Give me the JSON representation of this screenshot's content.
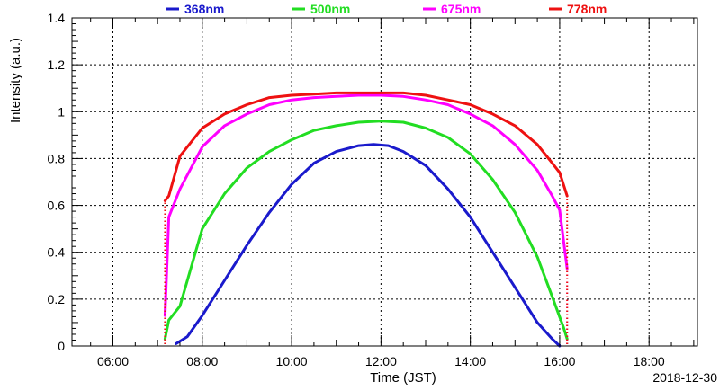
{
  "chart_data": {
    "type": "scatter",
    "xlabel": "Time (JST)",
    "ylabel": "Intensity (a.u.)",
    "date_label": "2018-12-30",
    "xlim": [
      "05:05",
      "19:05"
    ],
    "ylim": [
      0,
      1.4
    ],
    "x_ticks": [
      "06:00",
      "08:00",
      "10:00",
      "12:00",
      "14:00",
      "16:00",
      "18:00"
    ],
    "y_ticks": [
      "0",
      "0.2",
      "0.4",
      "0.6",
      "0.8",
      "1",
      "1.2",
      "1.4"
    ],
    "grid": true,
    "legend_position": "top",
    "series": [
      {
        "name": "368nm",
        "color": "#1a1acc",
        "points": [
          [
            "07:25",
            0.01
          ],
          [
            "07:40",
            0.04
          ],
          [
            "08:00",
            0.13
          ],
          [
            "08:30",
            0.28
          ],
          [
            "09:00",
            0.43
          ],
          [
            "09:30",
            0.57
          ],
          [
            "10:00",
            0.69
          ],
          [
            "10:30",
            0.78
          ],
          [
            "11:00",
            0.83
          ],
          [
            "11:30",
            0.855
          ],
          [
            "11:50",
            0.86
          ],
          [
            "12:10",
            0.855
          ],
          [
            "12:30",
            0.83
          ],
          [
            "13:00",
            0.77
          ],
          [
            "13:30",
            0.67
          ],
          [
            "14:00",
            0.55
          ],
          [
            "14:30",
            0.4
          ],
          [
            "15:00",
            0.25
          ],
          [
            "15:30",
            0.1
          ],
          [
            "15:50",
            0.03
          ],
          [
            "16:00",
            0.0
          ]
        ]
      },
      {
        "name": "500nm",
        "color": "#22dd22",
        "points": [
          [
            "07:10",
            0.03
          ],
          [
            "07:15",
            0.11
          ],
          [
            "07:30",
            0.17
          ],
          [
            "08:00",
            0.5
          ],
          [
            "08:30",
            0.65
          ],
          [
            "09:00",
            0.76
          ],
          [
            "09:30",
            0.83
          ],
          [
            "10:00",
            0.88
          ],
          [
            "10:30",
            0.92
          ],
          [
            "11:00",
            0.94
          ],
          [
            "11:30",
            0.955
          ],
          [
            "12:00",
            0.96
          ],
          [
            "12:30",
            0.955
          ],
          [
            "13:00",
            0.93
          ],
          [
            "13:30",
            0.89
          ],
          [
            "14:00",
            0.82
          ],
          [
            "14:30",
            0.71
          ],
          [
            "15:00",
            0.57
          ],
          [
            "15:30",
            0.38
          ],
          [
            "15:50",
            0.21
          ],
          [
            "16:05",
            0.08
          ],
          [
            "16:10",
            0.03
          ]
        ]
      },
      {
        "name": "675nm",
        "color": "#ff00ff",
        "points": [
          [
            "07:10",
            0.13
          ],
          [
            "07:15",
            0.55
          ],
          [
            "07:30",
            0.67
          ],
          [
            "08:00",
            0.85
          ],
          [
            "08:30",
            0.94
          ],
          [
            "09:00",
            0.99
          ],
          [
            "09:30",
            1.03
          ],
          [
            "10:00",
            1.05
          ],
          [
            "10:30",
            1.06
          ],
          [
            "11:00",
            1.065
          ],
          [
            "11:30",
            1.07
          ],
          [
            "12:00",
            1.07
          ],
          [
            "12:30",
            1.065
          ],
          [
            "13:00",
            1.05
          ],
          [
            "13:30",
            1.03
          ],
          [
            "14:00",
            0.99
          ],
          [
            "14:30",
            0.94
          ],
          [
            "15:00",
            0.86
          ],
          [
            "15:30",
            0.75
          ],
          [
            "15:50",
            0.64
          ],
          [
            "16:00",
            0.58
          ],
          [
            "16:10",
            0.33
          ]
        ]
      },
      {
        "name": "778nm",
        "color": "#ee1111",
        "points": [
          [
            "07:10",
            0.62
          ],
          [
            "07:15",
            0.64
          ],
          [
            "07:30",
            0.81
          ],
          [
            "08:00",
            0.93
          ],
          [
            "08:30",
            0.99
          ],
          [
            "09:00",
            1.03
          ],
          [
            "09:30",
            1.06
          ],
          [
            "10:00",
            1.07
          ],
          [
            "10:30",
            1.075
          ],
          [
            "11:00",
            1.08
          ],
          [
            "11:30",
            1.08
          ],
          [
            "12:00",
            1.08
          ],
          [
            "12:30",
            1.08
          ],
          [
            "13:00",
            1.07
          ],
          [
            "13:30",
            1.05
          ],
          [
            "14:00",
            1.03
          ],
          [
            "14:30",
            0.99
          ],
          [
            "15:00",
            0.94
          ],
          [
            "15:30",
            0.86
          ],
          [
            "15:50",
            0.78
          ],
          [
            "16:00",
            0.74
          ],
          [
            "16:10",
            0.64
          ]
        ]
      }
    ]
  }
}
